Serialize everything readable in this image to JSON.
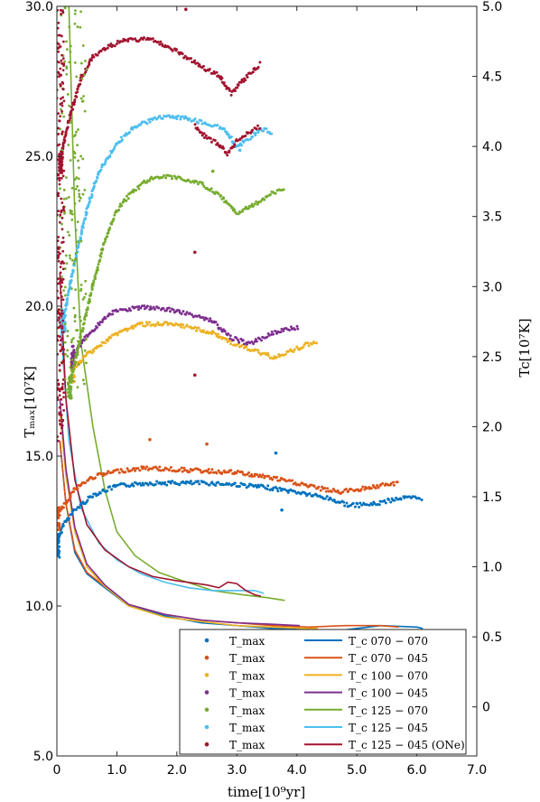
{
  "chart_data": {
    "type": "scatter",
    "xlabel": "time[10⁹yr]",
    "ylabel_left": "Tₘₐₓ[10⁷K]",
    "ylabel_right": "Tc[10⁷K]",
    "xlim": [
      0,
      7.0
    ],
    "ylim_left": [
      5.0,
      30.0
    ],
    "ylim_right": [
      -0.35,
      5.0
    ],
    "x_ticks": [
      "0",
      "1.0",
      "2.0",
      "3.0",
      "4.0",
      "5.0",
      "6.0",
      "7.0"
    ],
    "y_left_ticks": [
      "5.0",
      "10.0",
      "15.0",
      "20.0",
      "25.0",
      "30.0"
    ],
    "y_right_ticks": [
      "0",
      "0.5",
      "1.0",
      "1.5",
      "2.0",
      "2.5",
      "3.0",
      "3.5",
      "4.0",
      "4.5",
      "5.0"
    ],
    "legend_position": "bottom-right",
    "colors": {
      "c070_070": "#0072BD",
      "c070_045": "#D95319",
      "c100_070": "#EDB120",
      "c100_045": "#7E2F8E",
      "c125_070": "#77AC30",
      "c125_045": "#4DBEEE",
      "c125_045_one": "#A2142F"
    },
    "tmax_series": [
      {
        "color_key": "c070_070",
        "points": [
          [
            0.0,
            12.0
          ],
          [
            0.1,
            12.7
          ],
          [
            0.3,
            13.2
          ],
          [
            0.6,
            13.7
          ],
          [
            1.0,
            14.0
          ],
          [
            1.5,
            14.1
          ],
          [
            2.0,
            14.1
          ],
          [
            2.5,
            14.1
          ],
          [
            3.0,
            14.05
          ],
          [
            3.5,
            13.95
          ],
          [
            4.0,
            13.8
          ],
          [
            4.5,
            13.6
          ],
          [
            4.9,
            13.35
          ],
          [
            5.3,
            13.4
          ],
          [
            5.7,
            13.6
          ],
          [
            6.1,
            13.6
          ]
        ]
      },
      {
        "color_key": "c070_045",
        "points": [
          [
            0.0,
            12.9
          ],
          [
            0.1,
            13.3
          ],
          [
            0.3,
            13.9
          ],
          [
            0.6,
            14.3
          ],
          [
            1.0,
            14.5
          ],
          [
            1.5,
            14.6
          ],
          [
            2.0,
            14.55
          ],
          [
            2.5,
            14.5
          ],
          [
            3.0,
            14.45
          ],
          [
            3.5,
            14.3
          ],
          [
            4.0,
            14.1
          ],
          [
            4.3,
            13.95
          ],
          [
            4.7,
            13.8
          ],
          [
            5.2,
            13.95
          ],
          [
            5.7,
            14.1
          ]
        ]
      },
      {
        "color_key": "c100_070",
        "points": [
          [
            0.25,
            17.8
          ],
          [
            0.5,
            18.4
          ],
          [
            0.8,
            18.8
          ],
          [
            1.0,
            19.1
          ],
          [
            1.4,
            19.4
          ],
          [
            1.8,
            19.4
          ],
          [
            2.2,
            19.3
          ],
          [
            2.6,
            19.1
          ],
          [
            3.0,
            18.7
          ],
          [
            3.3,
            18.5
          ],
          [
            3.6,
            18.3
          ],
          [
            3.9,
            18.5
          ],
          [
            4.2,
            18.75
          ],
          [
            4.35,
            18.75
          ]
        ]
      },
      {
        "color_key": "c100_045",
        "points": [
          [
            0.25,
            18.3
          ],
          [
            0.5,
            19.0
          ],
          [
            0.8,
            19.6
          ],
          [
            1.0,
            19.85
          ],
          [
            1.4,
            19.95
          ],
          [
            1.8,
            19.9
          ],
          [
            2.2,
            19.75
          ],
          [
            2.6,
            19.5
          ],
          [
            2.9,
            18.95
          ],
          [
            3.2,
            18.75
          ],
          [
            3.5,
            19.0
          ],
          [
            3.8,
            19.25
          ],
          [
            4.05,
            19.3
          ]
        ]
      },
      {
        "color_key": "c125_070",
        "points": [
          [
            0.2,
            17.3
          ],
          [
            0.4,
            19.0
          ],
          [
            0.6,
            20.7
          ],
          [
            0.8,
            22.2
          ],
          [
            1.0,
            23.2
          ],
          [
            1.3,
            23.9
          ],
          [
            1.6,
            24.3
          ],
          [
            2.0,
            24.3
          ],
          [
            2.4,
            24.1
          ],
          [
            2.7,
            23.7
          ],
          [
            3.0,
            23.1
          ],
          [
            3.3,
            23.4
          ],
          [
            3.6,
            23.8
          ],
          [
            3.8,
            23.9
          ]
        ]
      },
      {
        "color_key": "c125_045",
        "points": [
          [
            0.1,
            19.5
          ],
          [
            0.3,
            21.5
          ],
          [
            0.5,
            23.2
          ],
          [
            0.7,
            24.5
          ],
          [
            1.0,
            25.4
          ],
          [
            1.3,
            26.0
          ],
          [
            1.7,
            26.3
          ],
          [
            2.1,
            26.3
          ],
          [
            2.5,
            26.1
          ],
          [
            2.8,
            25.9
          ],
          [
            3.0,
            25.3
          ],
          [
            3.2,
            25.6
          ],
          [
            3.4,
            25.9
          ],
          [
            3.6,
            25.8
          ]
        ]
      },
      {
        "color_key": "c125_045_one",
        "points": [
          [
            0.05,
            24.8
          ],
          [
            0.2,
            26.2
          ],
          [
            0.4,
            27.6
          ],
          [
            0.6,
            28.3
          ],
          [
            0.9,
            28.7
          ],
          [
            1.2,
            28.9
          ],
          [
            1.6,
            28.9
          ],
          [
            2.0,
            28.5
          ],
          [
            2.4,
            28.0
          ],
          [
            2.7,
            27.7
          ],
          [
            2.9,
            27.1
          ],
          [
            3.1,
            27.5
          ],
          [
            3.3,
            27.9
          ],
          [
            3.4,
            28.1
          ]
        ]
      },
      {
        "color_key": "c125_045_one",
        "points": [
          [
            2.3,
            26.0
          ],
          [
            2.5,
            25.6
          ],
          [
            2.7,
            25.4
          ],
          [
            2.85,
            25.1
          ],
          [
            3.0,
            25.5
          ],
          [
            3.2,
            25.8
          ],
          [
            3.4,
            26.0
          ]
        ]
      }
    ],
    "tc_series": [
      {
        "color_key": "c070_070",
        "points": [
          [
            0.05,
            1.9
          ],
          [
            0.15,
            1.45
          ],
          [
            0.3,
            1.1
          ],
          [
            0.5,
            0.95
          ],
          [
            0.8,
            0.85
          ],
          [
            1.2,
            0.72
          ],
          [
            1.8,
            0.65
          ],
          [
            2.4,
            0.6
          ],
          [
            3.0,
            0.58
          ],
          [
            3.6,
            0.56
          ],
          [
            4.2,
            0.55
          ],
          [
            4.8,
            0.55
          ],
          [
            5.4,
            0.58
          ],
          [
            6.0,
            0.57
          ],
          [
            6.1,
            0.56
          ]
        ]
      },
      {
        "color_key": "c070_045",
        "points": [
          [
            0.05,
            1.9
          ],
          [
            0.15,
            1.45
          ],
          [
            0.3,
            1.12
          ],
          [
            0.5,
            0.96
          ],
          [
            0.8,
            0.86
          ],
          [
            1.2,
            0.73
          ],
          [
            1.8,
            0.66
          ],
          [
            2.4,
            0.62
          ],
          [
            3.0,
            0.6
          ],
          [
            3.6,
            0.58
          ],
          [
            4.2,
            0.57
          ],
          [
            4.8,
            0.58
          ],
          [
            5.4,
            0.58
          ],
          [
            5.7,
            0.57
          ]
        ]
      },
      {
        "color_key": "c100_070",
        "points": [
          [
            0.05,
            2.1
          ],
          [
            0.15,
            1.65
          ],
          [
            0.3,
            1.25
          ],
          [
            0.5,
            1.0
          ],
          [
            0.8,
            0.86
          ],
          [
            1.2,
            0.72
          ],
          [
            1.8,
            0.64
          ],
          [
            2.4,
            0.61
          ],
          [
            3.0,
            0.58
          ],
          [
            3.6,
            0.57
          ],
          [
            4.2,
            0.56
          ],
          [
            4.35,
            0.56
          ]
        ]
      },
      {
        "color_key": "c100_045",
        "points": [
          [
            0.05,
            2.2
          ],
          [
            0.15,
            1.7
          ],
          [
            0.3,
            1.28
          ],
          [
            0.5,
            1.02
          ],
          [
            0.8,
            0.87
          ],
          [
            1.2,
            0.73
          ],
          [
            1.8,
            0.66
          ],
          [
            2.4,
            0.62
          ],
          [
            3.0,
            0.6
          ],
          [
            3.6,
            0.59
          ],
          [
            4.05,
            0.58
          ]
        ]
      },
      {
        "color_key": "c125_070",
        "points": [
          [
            0.2,
            5.0
          ],
          [
            0.3,
            3.5
          ],
          [
            0.4,
            2.6
          ],
          [
            0.6,
            2.0
          ],
          [
            0.8,
            1.55
          ],
          [
            1.0,
            1.25
          ],
          [
            1.3,
            1.08
          ],
          [
            1.7,
            0.96
          ],
          [
            2.1,
            0.9
          ],
          [
            2.6,
            0.83
          ],
          [
            3.1,
            0.8
          ],
          [
            3.5,
            0.78
          ],
          [
            3.8,
            0.76
          ]
        ]
      },
      {
        "color_key": "c125_045",
        "points": [
          [
            0.05,
            2.8
          ],
          [
            0.2,
            1.9
          ],
          [
            0.4,
            1.42
          ],
          [
            0.7,
            1.17
          ],
          [
            1.0,
            1.05
          ],
          [
            1.4,
            0.95
          ],
          [
            1.8,
            0.89
          ],
          [
            2.2,
            0.85
          ],
          [
            2.6,
            0.83
          ],
          [
            3.0,
            0.83
          ],
          [
            3.3,
            0.83
          ],
          [
            3.45,
            0.81
          ]
        ]
      },
      {
        "color_key": "c125_045_one",
        "points": [
          [
            0.05,
            3.1
          ],
          [
            0.15,
            2.2
          ],
          [
            0.3,
            1.62
          ],
          [
            0.5,
            1.3
          ],
          [
            0.8,
            1.12
          ],
          [
            1.2,
            1.0
          ],
          [
            1.6,
            0.93
          ],
          [
            2.0,
            0.9
          ],
          [
            2.5,
            0.87
          ],
          [
            2.7,
            0.85
          ],
          [
            2.85,
            0.89
          ],
          [
            3.0,
            0.88
          ],
          [
            3.15,
            0.83
          ],
          [
            3.3,
            0.8
          ],
          [
            3.4,
            0.79
          ]
        ]
      }
    ],
    "outliers": [
      {
        "color_key": "c070_045",
        "x": 1.55,
        "y": 15.55
      },
      {
        "color_key": "c070_045",
        "x": 2.5,
        "y": 15.4
      },
      {
        "color_key": "c070_070",
        "x": 3.65,
        "y": 15.1
      },
      {
        "color_key": "c070_070",
        "x": 3.75,
        "y": 13.2
      },
      {
        "color_key": "c125_045_one",
        "x": 2.3,
        "y": 21.8
      },
      {
        "color_key": "c125_045_one",
        "x": 2.3,
        "y": 17.7
      },
      {
        "color_key": "c125_045_one",
        "x": 2.15,
        "y": 29.9
      },
      {
        "color_key": "c125_070",
        "x": 2.6,
        "y": 24.5
      },
      {
        "color_key": "c125_045",
        "x": 3.05,
        "y": 25.2
      }
    ],
    "legend": {
      "tmax_label": "T_max",
      "entries": [
        {
          "color_key": "c070_070",
          "tc_label": "T_c 070 − 070"
        },
        {
          "color_key": "c070_045",
          "tc_label": "T_c 070 − 045"
        },
        {
          "color_key": "c100_070",
          "tc_label": "T_c 100 − 070"
        },
        {
          "color_key": "c100_045",
          "tc_label": "T_c 100 − 045"
        },
        {
          "color_key": "c125_070",
          "tc_label": "T_c 125 − 070"
        },
        {
          "color_key": "c125_045",
          "tc_label": "T_c 125 − 045"
        },
        {
          "color_key": "c125_045_one",
          "tc_label": "T_c 125 − 045 (ONe)"
        }
      ]
    }
  }
}
